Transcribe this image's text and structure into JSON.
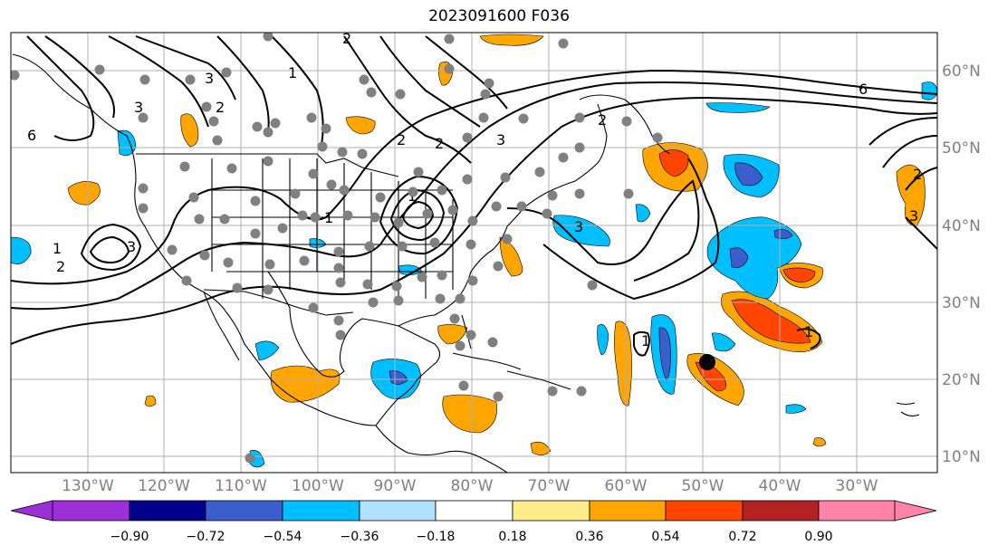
{
  "title": "2023091600 F036",
  "lon_labels": [
    "130°W",
    "120°W",
    "110°W",
    "100°W",
    "90°W",
    "80°W",
    "70°W",
    "60°W",
    "50°W",
    "40°W",
    "30°W"
  ],
  "lat_labels": [
    "60°N",
    "50°N",
    "40°N",
    "30°N",
    "20°N",
    "10°N"
  ],
  "contour_labels": [
    "3",
    "2",
    "1",
    "6",
    "2",
    "3",
    "2",
    "1",
    "3",
    "2",
    "3",
    "2",
    "1",
    "1",
    "6",
    "2",
    "3",
    "3",
    "2",
    "1",
    "1"
  ],
  "colorbar": {
    "tick_labels": [
      "−0.90",
      "−0.72",
      "−0.54",
      "−0.36",
      "−0.18",
      "0.18",
      "0.36",
      "0.54",
      "0.72",
      "0.90"
    ],
    "colors": [
      "#9b30d9",
      "#00008b",
      "#3a5fcd",
      "#00bfff",
      "#b0e2ff",
      "#ffffff",
      "#ffec8b",
      "#ffa500",
      "#ff4500",
      "#b22222",
      "#ff82ab"
    ]
  },
  "marker": {
    "lon": -50,
    "lat": 22.5,
    "label": ""
  }
}
